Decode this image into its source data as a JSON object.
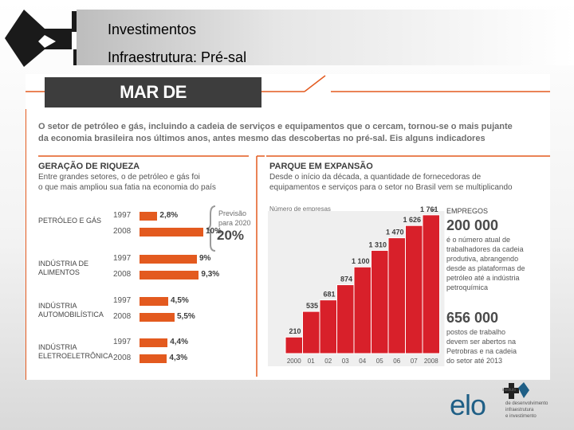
{
  "header": {
    "title": "Investimentos",
    "subtitle": "Infraestrutura: Pré-sal"
  },
  "infographic": {
    "banner": "MAR DE OPORTUNIDADES",
    "intro_line1": "O setor de petróleo e gás, incluindo a cadeia de serviços e equipamentos que o cercam, tornou-se o mais pujante",
    "intro_line2": "da economia brasileira nos últimos anos, antes mesmo das descobertas no pré-sal. Eis alguns indicadores",
    "left_title": "GERAÇÃO DE RIQUEZA",
    "left_sub1": "Entre grandes setores, o de petróleo e gás foi",
    "left_sub2": "o que mais ampliou sua fatia na economia do país",
    "forecast_label1": "Previsão",
    "forecast_label2": "para 2020",
    "forecast_value": "20%",
    "right_title": "PARQUE EM EXPANSÃO",
    "right_sub1": "Desde o início da década, a quantidade de fornecedoras de",
    "right_sub2": "equipamentos e serviços para o setor no Brasil vem se multiplicando",
    "right_chart_caption": "Número de empresas",
    "emp_title": "EMPREGOS",
    "emp_value1": "200 000",
    "emp_desc1": [
      "é o número atual de",
      "trabalhadores da cadeia",
      "produtiva, abrangendo",
      "desde as plataformas de",
      "petróleo até a indústria",
      "petroquímica"
    ],
    "emp_value2": "656 000",
    "emp_desc2": [
      "postos de trabalho",
      "devem ser abertos na",
      "Petrobras e na cadeia",
      "do setor até 2013"
    ]
  },
  "footer": {
    "logo_text": "elo",
    "inst_small": "instituto",
    "inst_line1": "de desenvolvimento",
    "inst_line2": "infraestrutura",
    "inst_line3": "e investimento"
  },
  "colors": {
    "accent": "#e35a1f",
    "bars": "#d8202a",
    "banner": "#3d3d3d",
    "logo": "#1f5f86"
  },
  "chart_data": [
    {
      "type": "bar",
      "title": "GERAÇÃO DE RIQUEZA",
      "orientation": "horizontal",
      "groups": [
        {
          "label": "PETRÓLEO E GÁS",
          "years": [
            "1997",
            "2008"
          ],
          "values": [
            2.8,
            10
          ],
          "labels": [
            "2,8%",
            "10%"
          ]
        },
        {
          "label": "INDÚSTRIA DE ALIMENTOS",
          "years": [
            "1997",
            "2008"
          ],
          "values": [
            9,
            9.3
          ],
          "labels": [
            "9%",
            "9,3%"
          ]
        },
        {
          "label": "INDÚSTRIA AUTOMOBILÍSTICA",
          "years": [
            "1997",
            "2008"
          ],
          "values": [
            4.5,
            5.5
          ],
          "labels": [
            "4,5%",
            "5,5%"
          ]
        },
        {
          "label": "INDÚSTRIA ELETROELETRÔNICA",
          "years": [
            "1997",
            "2008"
          ],
          "values": [
            4.4,
            4.3
          ],
          "labels": [
            "4,4%",
            "4,3%"
          ]
        }
      ],
      "xlim": [
        0,
        10
      ]
    },
    {
      "type": "area",
      "title": "PARQUE EM EXPANSÃO",
      "ylabel": "Número de empresas",
      "categories": [
        "2000",
        "01",
        "02",
        "03",
        "04",
        "05",
        "06",
        "07",
        "2008"
      ],
      "values": [
        210,
        535,
        681,
        874,
        1100,
        1310,
        1470,
        1626,
        1761
      ],
      "value_labels": [
        "210",
        "535",
        "681",
        "874",
        "1 100",
        "1 310",
        "1 470",
        "1 626",
        "1 761"
      ],
      "ylim": [
        0,
        1800
      ]
    }
  ]
}
